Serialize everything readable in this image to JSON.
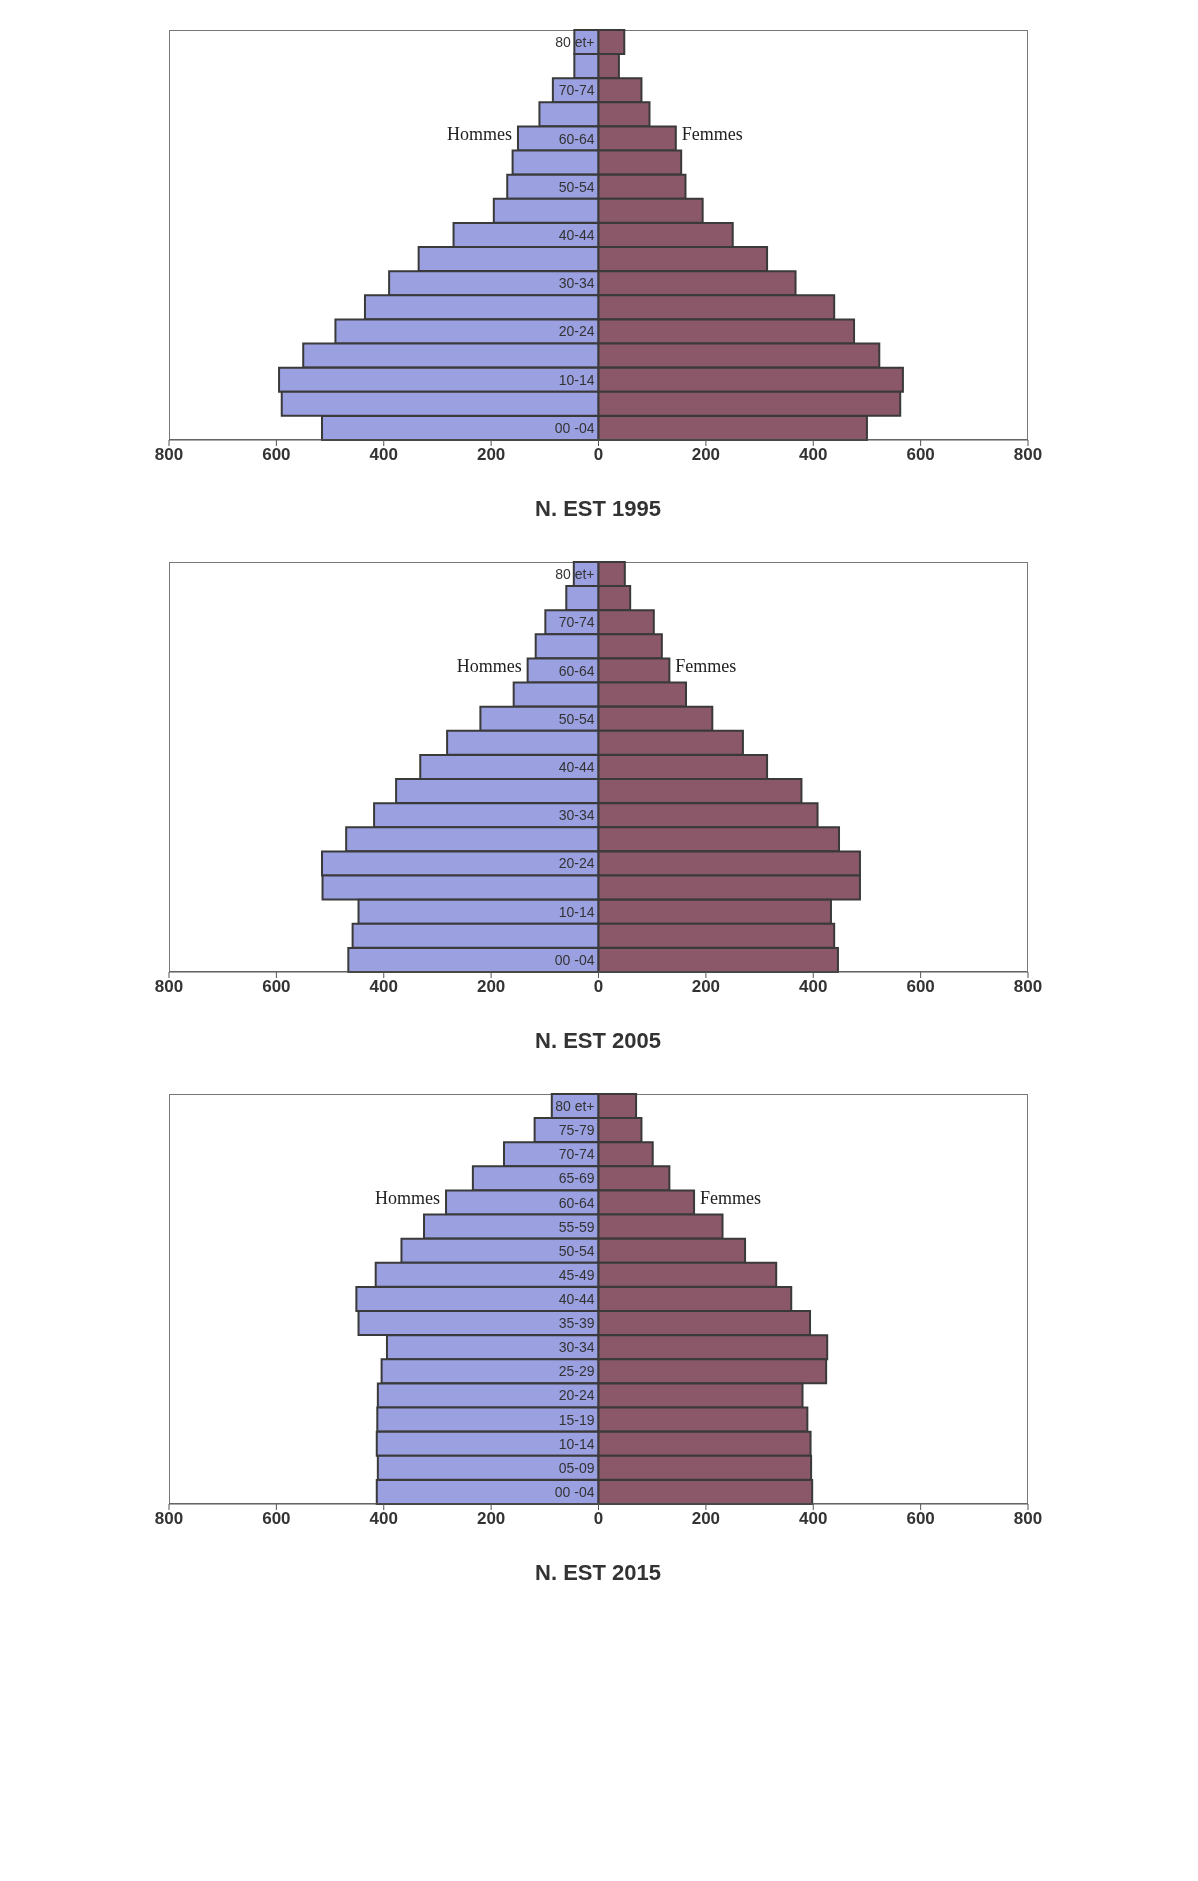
{
  "chart_data": [
    {
      "type": "bar",
      "orientation": "horizontal",
      "stacked": true,
      "title": "N. EST 1995",
      "legend": false,
      "categories": [
        "80 et+",
        null,
        "70-74",
        null,
        "60-64",
        null,
        "50-54",
        null,
        "40-44",
        null,
        "30-34",
        null,
        "20-24",
        null,
        "10-14",
        null,
        "00 -04"
      ],
      "xlim": [
        -800,
        800
      ],
      "xticks": [
        {
          "value": -800,
          "label": "800"
        },
        {
          "value": -600,
          "label": "600"
        },
        {
          "value": -400,
          "label": "400"
        },
        {
          "value": -200,
          "label": "200"
        },
        0,
        200,
        400,
        600,
        800
      ],
      "series": [
        {
          "name": "Hommes",
          "color": "#9aa0e0",
          "values": [
            -45,
            -45,
            -85,
            -110,
            -150,
            -160,
            -170,
            -195,
            -270,
            -335,
            -390,
            -435,
            -490,
            -550,
            -595,
            -590,
            -515
          ]
        },
        {
          "name": "Femmes",
          "color": "#8a5868",
          "values": [
            48,
            38,
            80,
            95,
            144,
            154,
            162,
            194,
            250,
            314,
            367,
            439,
            476,
            523,
            567,
            562,
            500
          ]
        }
      ]
    },
    {
      "type": "bar",
      "orientation": "horizontal",
      "stacked": true,
      "title": "N. EST 2005",
      "legend": false,
      "categories": [
        "80 et+",
        null,
        "70-74",
        null,
        "60-64",
        null,
        "50-54",
        null,
        "40-44",
        null,
        "30-34",
        null,
        "20-24",
        null,
        "10-14",
        null,
        "00 -04"
      ],
      "xlim": [
        -800,
        800
      ],
      "xticks": [
        {
          "value": -800,
          "label": "800"
        },
        {
          "value": -600,
          "label": "600"
        },
        {
          "value": -400,
          "label": "400"
        },
        {
          "value": -200,
          "label": "200"
        },
        0,
        200,
        400,
        600,
        800
      ],
      "series": [
        {
          "name": "Hommes",
          "color": "#9aa0e0",
          "values": [
            -46,
            -60,
            -99,
            -117,
            -132,
            -158,
            -220,
            -282,
            -332,
            -377,
            -418,
            -470,
            -515,
            -514,
            -447,
            -458,
            -466
          ]
        },
        {
          "name": "Femmes",
          "color": "#8a5868",
          "values": [
            49,
            59,
            103,
            118,
            132,
            163,
            212,
            269,
            314,
            378,
            408,
            448,
            487,
            487,
            433,
            439,
            446
          ]
        }
      ]
    },
    {
      "type": "bar",
      "orientation": "horizontal",
      "stacked": true,
      "title": "N. EST 2015",
      "legend": false,
      "categories": [
        "80 et+",
        "75-79",
        "70-74",
        "65-69",
        "60-64",
        "55-59",
        "50-54",
        "45-49",
        "40-44",
        "35-39",
        "30-34",
        "25-29",
        "20-24",
        "15-19",
        "10-14",
        "05-09",
        "00 -04"
      ],
      "xlim": [
        -800,
        800
      ],
      "xticks": [
        {
          "value": -800,
          "label": "800"
        },
        {
          "value": -600,
          "label": "600"
        },
        {
          "value": -400,
          "label": "400"
        },
        {
          "value": -200,
          "label": "200"
        },
        0,
        200,
        400,
        600,
        800
      ],
      "series": [
        {
          "name": "Hommes",
          "color": "#9aa0e0",
          "values": [
            -87,
            -119,
            -176,
            -234,
            -284,
            -325,
            -367,
            -415,
            -451,
            -447,
            -394,
            -404,
            -411,
            -412,
            -413,
            -411,
            -413
          ]
        },
        {
          "name": "Femmes",
          "color": "#8a5868",
          "values": [
            70,
            80,
            101,
            132,
            178,
            231,
            273,
            331,
            359,
            394,
            426,
            424,
            380,
            389,
            395,
            396,
            398
          ]
        }
      ]
    }
  ]
}
